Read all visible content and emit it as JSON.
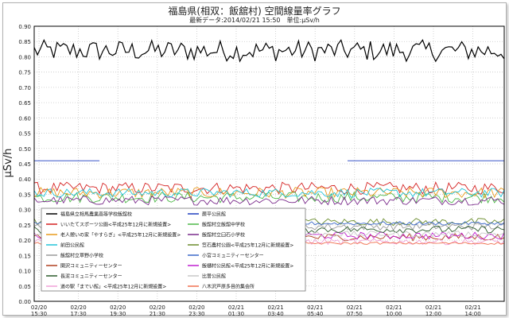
{
  "chart_data": {
    "type": "line",
    "title": "福島県(相双：飯舘村) 空間線量率グラフ",
    "subtitle": "最新データ:2014/02/21 15:50　単位:μSv/h",
    "ylabel": "μSv/h",
    "xlabel": "",
    "ylim": [
      0.0,
      0.9
    ],
    "yticks": [
      "0.00",
      "0.05",
      "0.10",
      "0.15",
      "0.20",
      "0.25",
      "0.30",
      "0.35",
      "0.40",
      "0.45",
      "0.50",
      "0.55",
      "0.60",
      "0.65",
      "0.70",
      "0.75",
      "0.80",
      "0.85",
      "0.90"
    ],
    "xticks": [
      {
        "date": "02/20",
        "time": "15:30"
      },
      {
        "date": "02/20",
        "time": "17:30"
      },
      {
        "date": "02/20",
        "time": "19:30"
      },
      {
        "date": "02/20",
        "time": "21:30"
      },
      {
        "date": "02/20",
        "time": "23:30"
      },
      {
        "date": "02/21",
        "time": "01:30"
      },
      {
        "date": "02/21",
        "time": "03:40"
      },
      {
        "date": "02/21",
        "time": "05:40"
      },
      {
        "date": "02/21",
        "time": "07:50"
      },
      {
        "date": "02/21",
        "time": "10:00"
      },
      {
        "date": "02/21",
        "time": "12:00"
      },
      {
        "date": "02/21",
        "time": "14:00"
      }
    ],
    "grid": true,
    "legend_position": "bottom-left",
    "series": [
      {
        "name": "福島県立相馬農業高等学校飯舘校",
        "color": "#000000",
        "base": 0.82,
        "amp": 0.035
      },
      {
        "name": "蕨平公民館",
        "color": "#1f3fbf",
        "base": 0.46,
        "amp": 0.0,
        "gap": [
          0.14,
          0.66
        ]
      },
      {
        "name": "いいたてスポーツ公園<平成25年12月に新規設置>",
        "color": "#d42020",
        "base": 0.37,
        "amp": 0.02
      },
      {
        "name": "飯舘村立飯舘中学校",
        "color": "#4db848",
        "base": 0.34,
        "amp": 0.018
      },
      {
        "name": "老人憩いの家「やすらぎ」<平成25年12月に新規設置>",
        "color": "#e89a1c",
        "base": 0.355,
        "amp": 0.018
      },
      {
        "name": "飯舘村立臼石小学校",
        "color": "#7b2c8c",
        "base": 0.33,
        "amp": 0.015
      },
      {
        "name": "前田公民館",
        "color": "#22c4d8",
        "base": 0.355,
        "amp": 0.015
      },
      {
        "name": "笠石農村公園<平成25年12月に新規設置>",
        "color": "#6a8c2c",
        "base": 0.26,
        "amp": 0.012
      },
      {
        "name": "飯舘村立草野小学校",
        "color": "#9a9a9a",
        "base": 0.245,
        "amp": 0.012
      },
      {
        "name": "小宮コミュニティーセンター",
        "color": "#3a68c8",
        "base": 0.255,
        "amp": 0.006
      },
      {
        "name": "関沢コミュニティーセンター",
        "color": "#b04020",
        "base": 0.21,
        "amp": 0.012
      },
      {
        "name": "飯樋村公民館<平成25年12月に新規設置>",
        "color": "#c020d0",
        "base": 0.215,
        "amp": 0.012
      },
      {
        "name": "長泥コミュニティーセンター",
        "color": "#2a5a2a",
        "base": 0.235,
        "amp": 0.012
      },
      {
        "name": "比曽公民館",
        "color": "#c8c8c8",
        "base": 0.22,
        "amp": 0.01
      },
      {
        "name": "道の駅「までい館」<平成25年12月に新規設置>",
        "color": "#f0a0d8",
        "base": 0.195,
        "amp": 0.01
      },
      {
        "name": "八木沢芦原多目的集会所",
        "color": "#f07050",
        "base": 0.19,
        "amp": 0.004
      }
    ]
  }
}
